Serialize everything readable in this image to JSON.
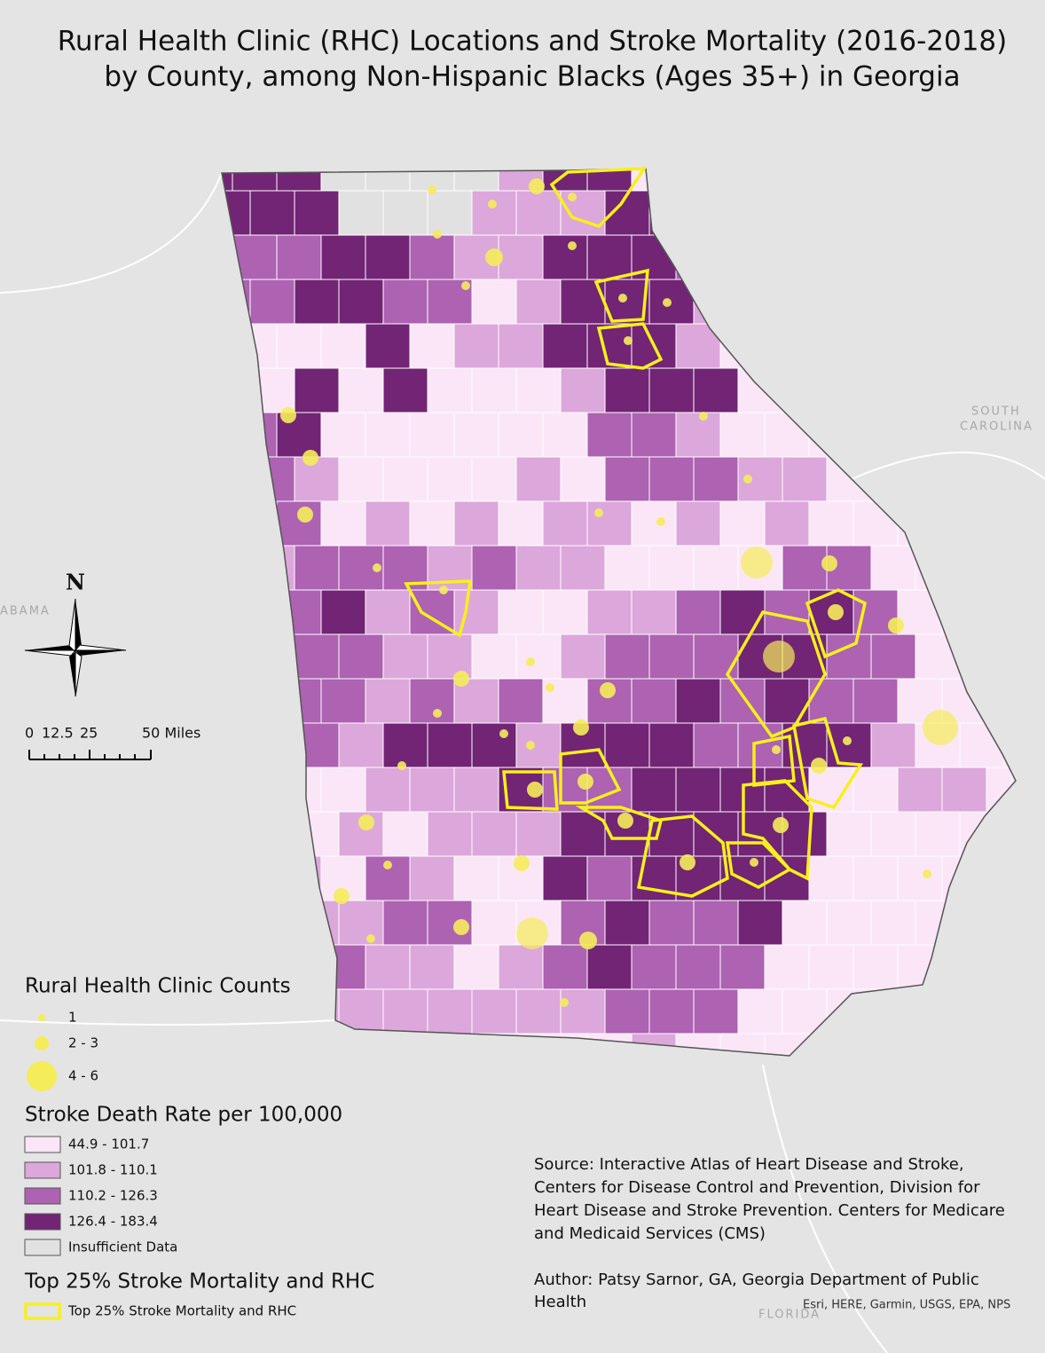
{
  "title": [
    "Rural Health Clinic (RHC) Locations and Stroke Mortality (2016-2018)",
    "by County, among Non-Hispanic Blacks (Ages 35+) in Georgia"
  ],
  "places": [
    "SOUTH",
    "CAROLINA",
    "FLORIDA",
    "ABAMA"
  ],
  "north": "N",
  "scale": [
    "0",
    "12.5",
    "25",
    "50 Miles"
  ],
  "legend": {
    "clinic_counts": {
      "title": "Rural Health Clinic Counts",
      "items": [
        "1",
        "2 - 3",
        "4 - 6"
      ],
      "color": "#f5ec5a"
    },
    "death_rate": {
      "title": "Stroke Death Rate per 100,000",
      "items": [
        {
          "label": "44.9 - 101.7",
          "color": "#fbe6f8"
        },
        {
          "label": "101.8 - 110.1",
          "color": "#dca7db"
        },
        {
          "label": "110.2 - 126.3",
          "color": "#ad62b2"
        },
        {
          "label": "126.4 - 183.4",
          "color": "#722475"
        },
        {
          "label": "Insufficient Data",
          "color": "#e1e1e1"
        }
      ]
    },
    "top25": {
      "title": "Top 25% Stroke Mortality and RHC",
      "items": [
        "Top 25% Stroke Mortality and RHC"
      ],
      "color": "#f7f01c"
    }
  },
  "source": [
    "Source: Interactive Atlas of Heart Disease and Stroke,",
    "Centers for Disease Control and Prevention, Division for",
    "Heart Disease and Stroke Prevention. Centers for Medicare",
    "and Medicaid Services (CMS)"
  ],
  "author": [
    "Author: Patsy Sarnor, GA, Georgia Department of Public",
    "Health"
  ],
  "credits": "Esri, HERE, Garmin, USGS, EPA, NPS"
}
